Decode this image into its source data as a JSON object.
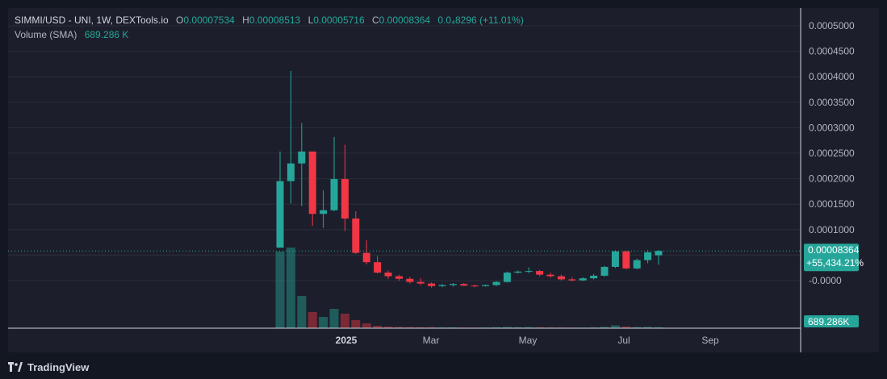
{
  "header": {
    "symbol_label": "SIMMI/USD - UNI, 1W, DEXTools.io",
    "open_key": "O",
    "open": "0.00007534",
    "high_key": "H",
    "high": "0.00008513",
    "low_key": "L",
    "low": "0.00005716",
    "close_key": "C",
    "close": "0.00008364",
    "change": "0.0₄8296 (+11.01%)",
    "volume_label": "Volume (SMA)",
    "volume_value": "689.286 K"
  },
  "footer": {
    "brand": "TradingView"
  },
  "colors": {
    "up": "#26a69a",
    "down": "#f23645",
    "bg": "#1c1f2b",
    "grid": "#2a2e39",
    "text": "#b2b5be"
  },
  "chart_data": {
    "type": "candlestick",
    "interval": "1W",
    "x_tick_labels": [
      "2025",
      "Mar",
      "May",
      "Jul",
      "Sep"
    ],
    "y_tick_labels": [
      "0.0005000",
      "0.0004500",
      "0.0004000",
      "0.0003500",
      "0.0003000",
      "0.0002500",
      "0.0002000",
      "0.0001500",
      "0.0001000",
      "-0.0000",
      "-0.0000"
    ],
    "ylim": [
      -2e-05,
      0.00052
    ],
    "last_price_label": "0.00008364",
    "last_change_label": "+55,434.21%",
    "volume_label": "689.286K",
    "candles": [
      {
        "o": 9e-05,
        "h": 0.000275,
        "l": 9e-05,
        "c": 0.000218,
        "v": 95
      },
      {
        "o": 0.000218,
        "h": 0.00043,
        "l": 0.000175,
        "c": 0.000252,
        "v": 100
      },
      {
        "o": 0.000252,
        "h": 0.00033,
        "l": 0.00017,
        "c": 0.000275,
        "v": 40
      },
      {
        "o": 0.000275,
        "h": 0.000275,
        "l": 0.000132,
        "c": 0.000155,
        "v": 20
      },
      {
        "o": 0.000155,
        "h": 0.0002,
        "l": 0.000128,
        "c": 0.000162,
        "v": 14
      },
      {
        "o": 0.000162,
        "h": 0.000303,
        "l": 0.00016,
        "c": 0.000222,
        "v": 24
      },
      {
        "o": 0.000222,
        "h": 0.000288,
        "l": 0.000122,
        "c": 0.000146,
        "v": 18
      },
      {
        "o": 0.000146,
        "h": 0.00016,
        "l": 7.8e-05,
        "c": 8e-05,
        "v": 10
      },
      {
        "o": 8e-05,
        "h": 0.000104,
        "l": 5.8e-05,
        "c": 6.2e-05,
        "v": 6
      },
      {
        "o": 6.2e-05,
        "h": 7.4e-05,
        "l": 4e-05,
        "c": 4.2e-05,
        "v": 3
      },
      {
        "o": 4.2e-05,
        "h": 4.6e-05,
        "l": 3e-05,
        "c": 3.5e-05,
        "v": 2
      },
      {
        "o": 3.5e-05,
        "h": 3.8e-05,
        "l": 2.6e-05,
        "c": 3e-05,
        "v": 1.6
      },
      {
        "o": 3e-05,
        "h": 3.4e-05,
        "l": 2.1e-05,
        "c": 2.4e-05,
        "v": 1.3
      },
      {
        "o": 2.4e-05,
        "h": 3.1e-05,
        "l": 1.8e-05,
        "c": 2.1e-05,
        "v": 1.1
      },
      {
        "o": 2.1e-05,
        "h": 2.3e-05,
        "l": 1.3e-05,
        "c": 1.6e-05,
        "v": 1.2
      },
      {
        "o": 1.6e-05,
        "h": 2e-05,
        "l": 1.4e-05,
        "c": 1.8e-05,
        "v": 0.9
      },
      {
        "o": 1.8e-05,
        "h": 2.2e-05,
        "l": 1.5e-05,
        "c": 2e-05,
        "v": 1.0
      },
      {
        "o": 2e-05,
        "h": 2.2e-05,
        "l": 1.6e-05,
        "c": 1.7e-05,
        "v": 0.8
      },
      {
        "o": 1.7e-05,
        "h": 1.9e-05,
        "l": 1.4e-05,
        "c": 1.6e-05,
        "v": 0.7
      },
      {
        "o": 1.6e-05,
        "h": 1.9e-05,
        "l": 1.5e-05,
        "c": 1.8e-05,
        "v": 0.8
      },
      {
        "o": 1.8e-05,
        "h": 2.6e-05,
        "l": 1.6e-05,
        "c": 2.4e-05,
        "v": 1.2
      },
      {
        "o": 2.4e-05,
        "h": 4.4e-05,
        "l": 2.3e-05,
        "c": 4.2e-05,
        "v": 1.5
      },
      {
        "o": 4.2e-05,
        "h": 4.6e-05,
        "l": 4e-05,
        "c": 4.4e-05,
        "v": 1.2
      },
      {
        "o": 4.4e-05,
        "h": 5.2e-05,
        "l": 4.1e-05,
        "c": 4.5e-05,
        "v": 1.3
      },
      {
        "o": 4.5e-05,
        "h": 4.7e-05,
        "l": 3.5e-05,
        "c": 3.8e-05,
        "v": 1.1
      },
      {
        "o": 3.8e-05,
        "h": 4.2e-05,
        "l": 3.2e-05,
        "c": 3.5e-05,
        "v": 0.9
      },
      {
        "o": 3.5e-05,
        "h": 3.8e-05,
        "l": 2.7e-05,
        "c": 2.9e-05,
        "v": 0.8
      },
      {
        "o": 2.9e-05,
        "h": 3.3e-05,
        "l": 2.5e-05,
        "c": 2.7e-05,
        "v": 0.7
      },
      {
        "o": 2.7e-05,
        "h": 3.3e-05,
        "l": 2.6e-05,
        "c": 3.1e-05,
        "v": 0.7
      },
      {
        "o": 3.1e-05,
        "h": 3.9e-05,
        "l": 2.9e-05,
        "c": 3.6e-05,
        "v": 0.9
      },
      {
        "o": 3.6e-05,
        "h": 5.5e-05,
        "l": 3.4e-05,
        "c": 5.3e-05,
        "v": 1.6
      },
      {
        "o": 5.3e-05,
        "h": 8.5e-05,
        "l": 5.1e-05,
        "c": 8.3e-05,
        "v": 3.5
      },
      {
        "o": 8.3e-05,
        "h": 8.3e-05,
        "l": 4.8e-05,
        "c": 5e-05,
        "v": 2.0
      },
      {
        "o": 5e-05,
        "h": 6.9e-05,
        "l": 4.8e-05,
        "c": 6.6e-05,
        "v": 1.4
      },
      {
        "o": 6.6e-05,
        "h": 8.5e-05,
        "l": 6e-05,
        "c": 8.1e-05,
        "v": 1.6
      },
      {
        "o": 7.53e-05,
        "h": 8.51e-05,
        "l": 5.72e-05,
        "c": 8.36e-05,
        "v": 1.2
      }
    ]
  }
}
